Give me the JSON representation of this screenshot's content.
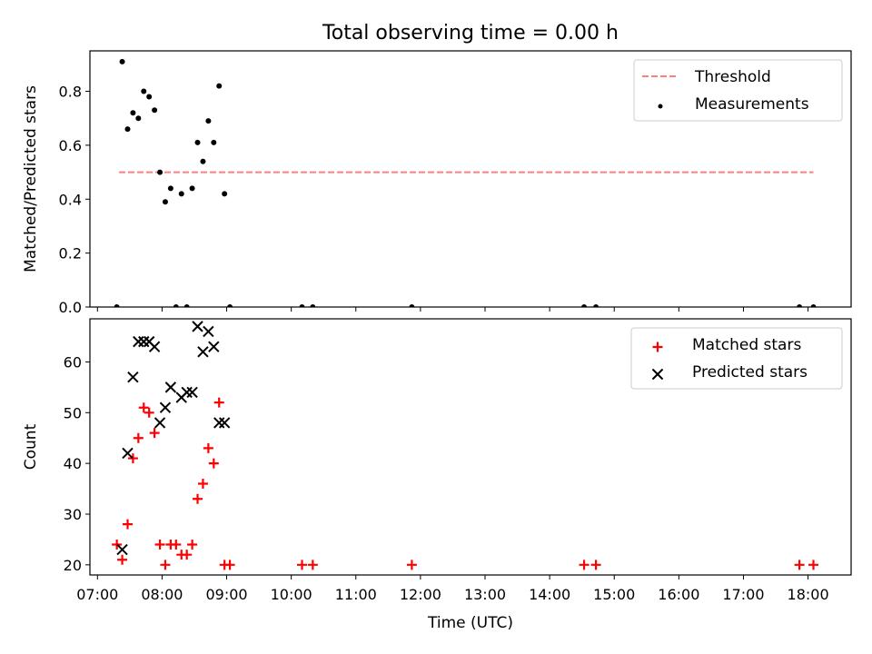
{
  "chart_data": [
    {
      "type": "scatter",
      "title": "Total observing time = 0.00 h",
      "xlabel": "",
      "ylabel": "Matched/Predicted stars",
      "xlim": [
        "06:53",
        "18:40"
      ],
      "ylim": [
        0,
        0.95
      ],
      "yticks": [
        "0.0",
        "0.2",
        "0.4",
        "0.6",
        "0.8"
      ],
      "yticks_values": [
        0.0,
        0.2,
        0.4,
        0.6,
        0.8
      ],
      "grid": false,
      "legend_position": "top-right",
      "series": [
        {
          "name": "Threshold",
          "kind": "line",
          "style": "dashed",
          "color": "#ff7f7f",
          "x": [
            "07:20",
            "18:05"
          ],
          "y": [
            0.5,
            0.5
          ]
        },
        {
          "name": "Measurements",
          "kind": "scatter",
          "marker": "dot",
          "color": "#000000",
          "x": [
            "07:18",
            "07:23",
            "07:28",
            "07:33",
            "07:38",
            "07:43",
            "07:48",
            "07:53",
            "07:58",
            "08:03",
            "08:08",
            "08:13",
            "08:18",
            "08:23",
            "08:28",
            "08:33",
            "08:38",
            "08:43",
            "08:48",
            "08:53",
            "08:58",
            "09:03",
            "10:10",
            "10:20",
            "11:52",
            "14:32",
            "14:43",
            "17:52",
            "18:05"
          ],
          "y": [
            0.0,
            0.91,
            0.66,
            0.72,
            0.7,
            0.8,
            0.78,
            0.73,
            0.5,
            0.39,
            0.44,
            0.0,
            0.42,
            0.0,
            0.44,
            0.61,
            0.54,
            0.69,
            0.61,
            0.82,
            0.42,
            0.0,
            0.0,
            0.0,
            0.0,
            0.0,
            0.0,
            0.0,
            0.0
          ]
        }
      ]
    },
    {
      "type": "scatter",
      "title": "",
      "xlabel": "Time (UTC)",
      "ylabel": "Count",
      "xlim": [
        "06:53",
        "18:40"
      ],
      "ylim": [
        18,
        68.5
      ],
      "yticks": [
        "20",
        "30",
        "40",
        "50",
        "60"
      ],
      "yticks_values": [
        20,
        30,
        40,
        50,
        60
      ],
      "xticks": [
        "07:00",
        "08:00",
        "09:00",
        "10:00",
        "11:00",
        "12:00",
        "13:00",
        "14:00",
        "15:00",
        "16:00",
        "17:00",
        "18:00"
      ],
      "grid": false,
      "legend_position": "top-right",
      "series": [
        {
          "name": "Matched stars",
          "kind": "scatter",
          "marker": "plus",
          "color": "#ff0000",
          "x": [
            "07:18",
            "07:23",
            "07:28",
            "07:33",
            "07:38",
            "07:43",
            "07:48",
            "07:53",
            "07:58",
            "08:03",
            "08:08",
            "08:13",
            "08:18",
            "08:23",
            "08:28",
            "08:33",
            "08:38",
            "08:43",
            "08:48",
            "08:53",
            "08:58",
            "09:03",
            "10:10",
            "10:20",
            "11:52",
            "14:32",
            "14:43",
            "17:52",
            "18:05"
          ],
          "y": [
            24,
            21,
            28,
            41,
            45,
            51,
            50,
            46,
            24,
            20,
            24,
            24,
            22,
            22,
            24,
            33,
            36,
            43,
            40,
            52,
            20,
            20,
            20,
            20,
            20,
            20,
            20,
            20,
            20
          ]
        },
        {
          "name": "Predicted stars",
          "kind": "scatter",
          "marker": "x",
          "color": "#000000",
          "x": [
            "07:23",
            "07:28",
            "07:33",
            "07:38",
            "07:43",
            "07:48",
            "07:53",
            "07:58",
            "08:03",
            "08:08",
            "08:18",
            "08:23",
            "08:28",
            "08:33",
            "08:38",
            "08:43",
            "08:48",
            "08:53",
            "08:58"
          ],
          "y": [
            23,
            42,
            57,
            64,
            64,
            64,
            63,
            48,
            51,
            55,
            53,
            54,
            54,
            67,
            62,
            66,
            63,
            48,
            48
          ]
        }
      ]
    }
  ]
}
